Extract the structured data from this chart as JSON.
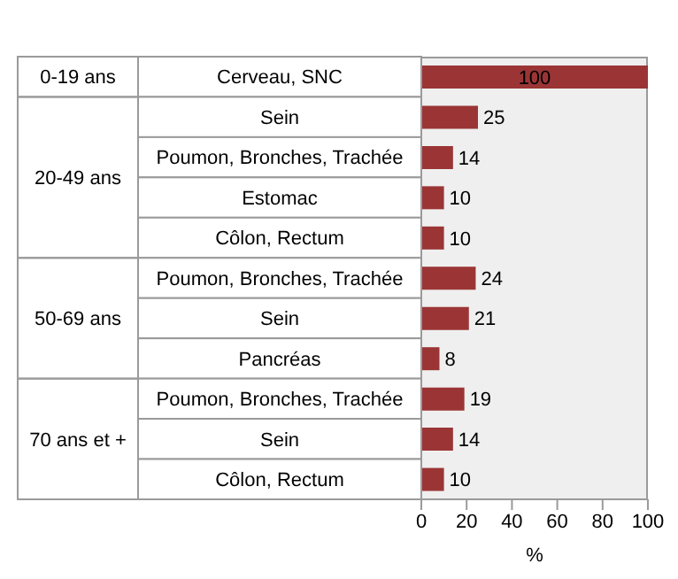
{
  "chart_data": {
    "type": "bar",
    "orientation": "horizontal",
    "categories": [
      "Cerveau, SNC",
      "Sein",
      "Poumon, Bronches, Trachée",
      "Estomac",
      "Côlon, Rectum",
      "Poumon, Bronches, Trachée",
      "Sein",
      "Pancréas",
      "Poumon, Bronches, Trachée",
      "Sein",
      "Côlon, Rectum"
    ],
    "values": [
      100,
      25,
      14,
      10,
      10,
      24,
      21,
      8,
      19,
      14,
      10
    ],
    "color": "#9b3535",
    "xlim": [
      0,
      100
    ],
    "xticks": [
      0,
      20,
      40,
      60,
      80,
      100
    ],
    "xlabel": "%",
    "data_labels": true,
    "grid": false,
    "annotations": [
      "0-19 ans",
      "20-49 ans",
      "50-69 ans",
      "70 ans et +"
    ]
  }
}
